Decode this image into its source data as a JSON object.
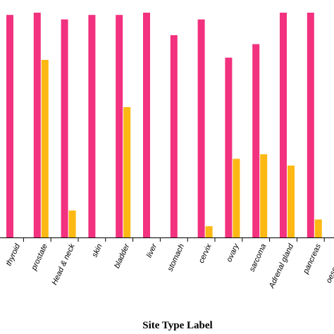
{
  "chart_data": {
    "type": "bar",
    "xlabel": "Site Type Label",
    "categories": [
      "thyroid",
      "prostate",
      "Head & neck",
      "skin",
      "bladder",
      "liver",
      "stomach",
      "cervix",
      "ovary",
      "sarcoma",
      "Adrenal gland",
      "pancreas",
      "oesophagus"
    ],
    "series": [
      {
        "color": "#F2317F",
        "values": [
          0.99,
          1.0,
          0.97,
          0.99,
          0.99,
          1.0,
          0.9,
          0.97,
          0.8,
          0.86,
          1.0,
          1.0,
          null
        ]
      },
      {
        "color": "#FDB813",
        "values": [
          0,
          0.79,
          0.12,
          0,
          0.58,
          0,
          0,
          0.05,
          0.35,
          0.37,
          0.32,
          0.08,
          null
        ]
      }
    ],
    "ylim": [
      0,
      1.0
    ],
    "grid": false,
    "legend": false
  }
}
